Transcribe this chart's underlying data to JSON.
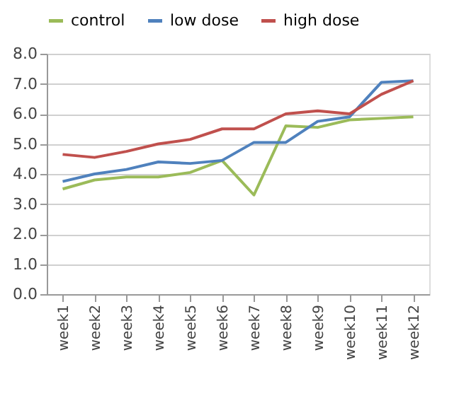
{
  "chart_data": {
    "type": "line",
    "categories": [
      "week1",
      "week2",
      "week3",
      "week4",
      "week5",
      "week6",
      "week7",
      "week8",
      "week9",
      "week10",
      "week11",
      "week12"
    ],
    "series": [
      {
        "name": "control",
        "color": "#9bbb59",
        "values": [
          3.5,
          3.8,
          3.9,
          3.9,
          4.05,
          4.45,
          3.3,
          5.6,
          5.55,
          5.8,
          5.85,
          5.9
        ]
      },
      {
        "name": "low dose",
        "color": "#4f81bd",
        "values": [
          3.75,
          4.0,
          4.15,
          4.4,
          4.35,
          4.45,
          5.05,
          5.05,
          5.75,
          5.9,
          7.05,
          7.1
        ]
      },
      {
        "name": "high dose",
        "color": "#c0504d",
        "values": [
          4.65,
          4.55,
          4.75,
          5.0,
          5.15,
          5.5,
          5.5,
          6.0,
          6.1,
          6.0,
          6.65,
          7.1
        ]
      }
    ],
    "ylim": [
      0,
      8
    ],
    "yticks": [
      {
        "value": 0,
        "label": "0.0"
      },
      {
        "value": 1,
        "label": "1.0"
      },
      {
        "value": 2,
        "label": "2.0"
      },
      {
        "value": 3,
        "label": "3.0"
      },
      {
        "value": 4,
        "label": "4.0"
      },
      {
        "value": 5,
        "label": "5.0"
      },
      {
        "value": 6,
        "label": "6.0"
      },
      {
        "value": 7,
        "label": "7.0"
      },
      {
        "value": 8,
        "label": "8.0"
      }
    ],
    "grid": "y",
    "legend": "top",
    "marker": "none",
    "line_style": "solid"
  }
}
